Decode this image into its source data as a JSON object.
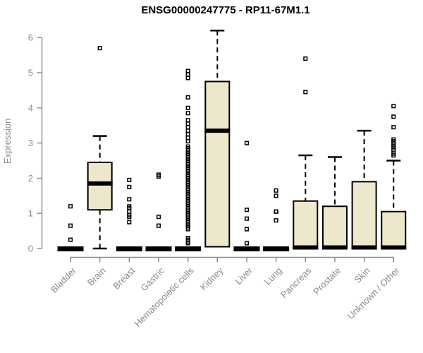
{
  "colors": {
    "background": "#ffffff",
    "box_fill": "#ede8cd",
    "box_border": "#000000",
    "median": "#000000",
    "whisker": "#000000",
    "outlier": "#000000",
    "axis": "#8a8a8a",
    "tick_label": "#8a8a8a",
    "title": "#000000"
  },
  "chart_data": {
    "type": "boxplot",
    "title": "ENSG00000247775 - RP11-67M1.1",
    "xlabel": "",
    "ylabel": "Expression",
    "ylim": [
      0,
      6
    ],
    "yticks": [
      0,
      1,
      2,
      3,
      4,
      5,
      6
    ],
    "grid": false,
    "legend": "none",
    "categories": [
      "Bladder",
      "Brain",
      "Breast",
      "Gastric",
      "Hematopoietic cells",
      "Kidney",
      "Liver",
      "Lung",
      "Pancreas",
      "Prostate",
      "Skin",
      "Unknown / Other"
    ],
    "series": [
      {
        "category": "Bladder",
        "whisker_low": 0,
        "q1": 0,
        "median": 0,
        "q3": 0,
        "whisker_high": 0,
        "outliers": [
          1.2,
          0.65,
          0.25
        ]
      },
      {
        "category": "Brain",
        "whisker_low": 0,
        "q1": 1.1,
        "median": 1.85,
        "q3": 2.45,
        "whisker_high": 3.2,
        "outliers": [
          5.7
        ]
      },
      {
        "category": "Breast",
        "whisker_low": 0,
        "q1": 0,
        "median": 0,
        "q3": 0,
        "whisker_high": 0,
        "outliers": [
          1.95,
          1.75,
          1.4,
          1.2,
          1.15,
          1.05,
          0.95,
          0.9,
          0.75
        ]
      },
      {
        "category": "Gastric",
        "whisker_low": 0,
        "q1": 0,
        "median": 0,
        "q3": 0,
        "whisker_high": 0,
        "outliers": [
          2.1,
          2.05,
          0.9,
          0.65
        ]
      },
      {
        "category": "Hematopoietic cells",
        "whisker_low": 0,
        "q1": 0,
        "median": 0,
        "q3": 0,
        "whisker_high": 0,
        "outliers": [
          5.05,
          4.95,
          4.85,
          4.3,
          4.0,
          3.85,
          3.65,
          3.55,
          3.45,
          3.35,
          3.25,
          3.15,
          3.05,
          2.9,
          2.85,
          2.8,
          2.75,
          2.7,
          2.65,
          2.6,
          2.55,
          2.5,
          2.45,
          2.4,
          2.35,
          2.3,
          2.25,
          2.2,
          2.15,
          2.1,
          2.05,
          2.0,
          1.95,
          1.9,
          1.85,
          1.8,
          1.75,
          1.7,
          1.65,
          1.6,
          1.55,
          1.5,
          1.45,
          1.4,
          1.35,
          1.3,
          1.25,
          1.2,
          1.15,
          1.1,
          1.05,
          1.0,
          0.95,
          0.9,
          0.85,
          0.8,
          0.75,
          0.7,
          0.65,
          0.6,
          0.55,
          0.3,
          0.25,
          0.2,
          0.15
        ]
      },
      {
        "category": "Kidney",
        "whisker_low": 0.05,
        "q1": 0.05,
        "median": 3.35,
        "q3": 4.75,
        "whisker_high": 6.2,
        "outliers": []
      },
      {
        "category": "Liver",
        "whisker_low": 0,
        "q1": 0,
        "median": 0,
        "q3": 0,
        "whisker_high": 0,
        "outliers": [
          3.0,
          1.1,
          0.85,
          0.55,
          0.15
        ]
      },
      {
        "category": "Lung",
        "whisker_low": 0,
        "q1": 0,
        "median": 0,
        "q3": 0,
        "whisker_high": 0,
        "outliers": [
          1.65,
          1.5,
          1.05,
          1.05,
          0.8
        ]
      },
      {
        "category": "Pancreas",
        "whisker_low": 0,
        "q1": 0,
        "median": 0.03,
        "q3": 1.35,
        "whisker_high": 2.65,
        "outliers": [
          5.4,
          4.45
        ]
      },
      {
        "category": "Prostate",
        "whisker_low": 0,
        "q1": 0,
        "median": 0.03,
        "q3": 1.2,
        "whisker_high": 2.6,
        "outliers": []
      },
      {
        "category": "Skin",
        "whisker_low": 0,
        "q1": 0,
        "median": 0.03,
        "q3": 1.9,
        "whisker_high": 3.35,
        "outliers": []
      },
      {
        "category": "Unknown / Other",
        "whisker_low": 0,
        "q1": 0,
        "median": 0.03,
        "q3": 1.05,
        "whisker_high": 2.5,
        "outliers": [
          4.05,
          3.75,
          3.45,
          3.1,
          3.05,
          3.0,
          2.95,
          2.9,
          2.85,
          2.8,
          2.7,
          2.65
        ]
      }
    ]
  }
}
